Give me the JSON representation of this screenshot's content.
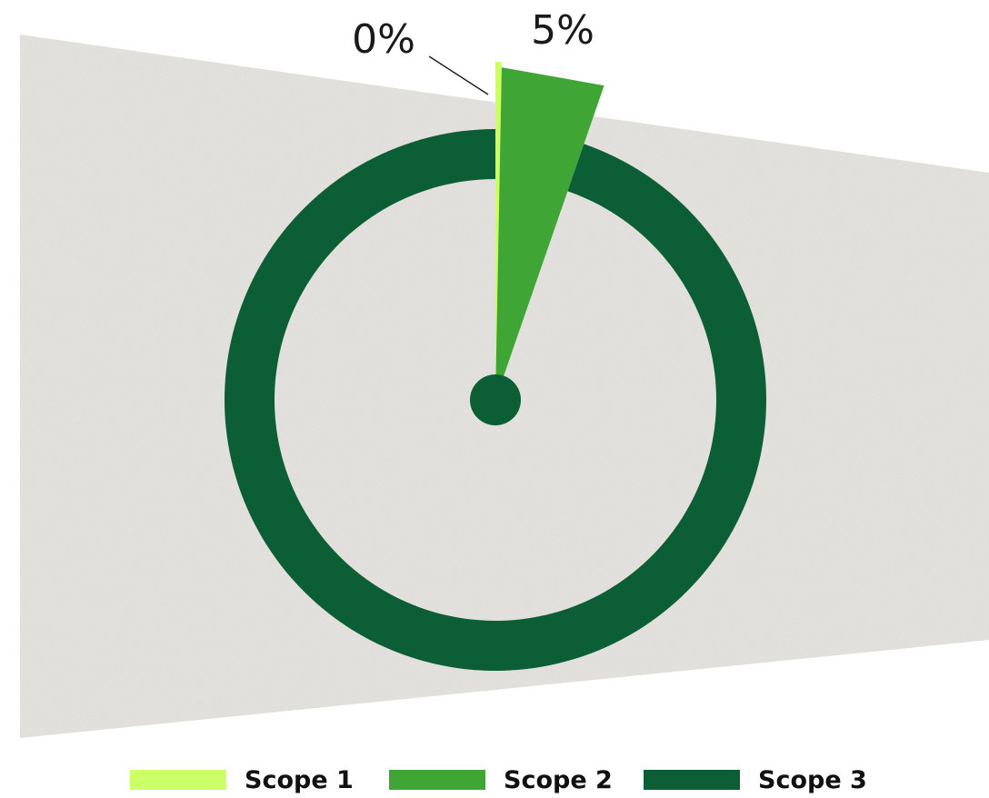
{
  "chart_data": {
    "type": "pie",
    "slices": [
      {
        "name": "Scope 1",
        "value": 0.3,
        "label": "0%",
        "color": "#ccff66"
      },
      {
        "name": "Scope 2",
        "value": 5,
        "label": "5%",
        "color": "#3fa535"
      },
      {
        "name": "Scope 3",
        "value": 94.7,
        "label": "",
        "color": "#0b5e36"
      }
    ],
    "start": "top, clockwise",
    "legend_position": "bottom"
  },
  "background": {
    "texture": "recycled-paper",
    "color": "#e8e6e2"
  },
  "legend": {
    "items": [
      {
        "label": "Scope 1",
        "color": "#ccff66"
      },
      {
        "label": "Scope 2",
        "color": "#3fa535"
      },
      {
        "label": "Scope 3",
        "color": "#0b5e36"
      }
    ]
  }
}
